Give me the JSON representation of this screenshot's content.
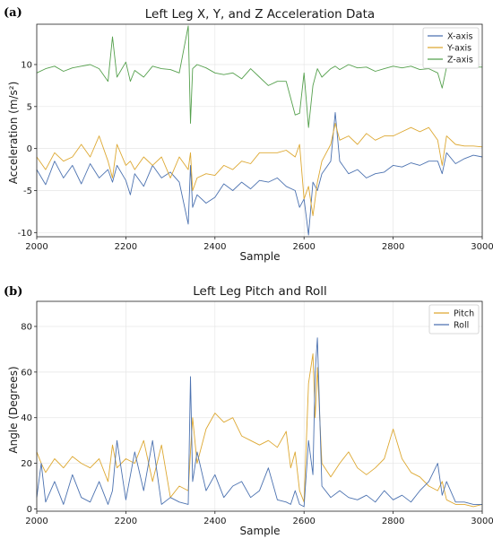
{
  "figure": {
    "panel_a_label": "(a)",
    "panel_b_label": "(b)"
  },
  "chart_data": [
    {
      "type": "line",
      "title": "Left Leg X, Y, and Z Acceleration Data",
      "xlabel": "Sample",
      "ylabel": "Acceleration (m/s²)",
      "xlim": [
        2000,
        3000
      ],
      "ylim": [
        -10.5,
        14.8
      ],
      "xticks": [
        2000,
        2200,
        2400,
        2600,
        2800,
        3000
      ],
      "yticks": [
        -10,
        -5,
        0,
        5,
        10
      ],
      "grid": true,
      "legend": "top-right",
      "x": [
        2000,
        2020,
        2040,
        2060,
        2080,
        2100,
        2120,
        2140,
        2160,
        2170,
        2180,
        2200,
        2210,
        2220,
        2240,
        2260,
        2280,
        2300,
        2320,
        2340,
        2345,
        2350,
        2360,
        2380,
        2400,
        2420,
        2440,
        2460,
        2480,
        2500,
        2520,
        2540,
        2560,
        2580,
        2590,
        2600,
        2610,
        2620,
        2630,
        2640,
        2660,
        2670,
        2680,
        2700,
        2720,
        2740,
        2760,
        2780,
        2800,
        2820,
        2840,
        2860,
        2880,
        2900,
        2910,
        2920,
        2940,
        2960,
        2980,
        3000
      ],
      "series": [
        {
          "name": "X-axis",
          "color": "#4c72b0",
          "values": [
            -2.5,
            -4.3,
            -1.5,
            -3.5,
            -2.0,
            -4.2,
            -1.8,
            -3.5,
            -2.5,
            -4.0,
            -2.0,
            -3.8,
            -5.5,
            -3.0,
            -4.5,
            -2.0,
            -3.5,
            -2.8,
            -4.0,
            -9.0,
            -2.0,
            -7.0,
            -5.5,
            -6.5,
            -5.8,
            -4.2,
            -5.0,
            -4.0,
            -4.8,
            -3.8,
            -4.0,
            -3.5,
            -4.5,
            -5.0,
            -7.0,
            -6.0,
            -10.3,
            -4.0,
            -5.0,
            -3.0,
            -1.5,
            4.3,
            -1.5,
            -3.0,
            -2.5,
            -3.5,
            -3.0,
            -2.8,
            -2.0,
            -2.2,
            -1.7,
            -2.0,
            -1.5,
            -1.5,
            -3.0,
            -0.5,
            -1.8,
            -1.2,
            -0.8,
            -1.0
          ]
        },
        {
          "name": "Y-axis",
          "color": "#dda832",
          "values": [
            -1.0,
            -2.5,
            -0.5,
            -1.5,
            -1.0,
            0.5,
            -1.0,
            1.5,
            -1.5,
            -3.5,
            0.5,
            -2.0,
            -1.5,
            -2.5,
            -1.0,
            -2.0,
            -1.0,
            -3.5,
            -1.0,
            -2.5,
            -0.5,
            -5.0,
            -3.5,
            -3.0,
            -3.2,
            -2.0,
            -2.5,
            -1.5,
            -1.8,
            -0.5,
            -0.5,
            -0.5,
            -0.2,
            -1.0,
            0.5,
            -6.0,
            -4.5,
            -8.0,
            -4.0,
            -1.5,
            0.5,
            3.0,
            1.0,
            1.5,
            0.5,
            1.8,
            1.0,
            1.5,
            1.5,
            2.0,
            2.5,
            2.0,
            2.5,
            1.0,
            -2.0,
            1.5,
            0.5,
            0.3,
            0.3,
            0.2
          ]
        },
        {
          "name": "Z-axis",
          "color": "#55a04d",
          "values": [
            9.0,
            9.5,
            9.8,
            9.2,
            9.6,
            9.8,
            10.0,
            9.5,
            8.0,
            13.3,
            8.5,
            10.3,
            8.0,
            9.3,
            8.5,
            9.8,
            9.5,
            9.4,
            9.0,
            14.6,
            3.0,
            9.5,
            10.0,
            9.6,
            9.0,
            8.8,
            9.0,
            8.3,
            9.5,
            8.5,
            7.5,
            8.0,
            8.0,
            4.0,
            4.2,
            9.0,
            2.5,
            7.5,
            9.5,
            8.5,
            9.5,
            9.8,
            9.4,
            10.0,
            9.6,
            9.7,
            9.2,
            9.5,
            9.8,
            9.6,
            9.8,
            9.4,
            9.5,
            9.0,
            7.2,
            9.7,
            9.7,
            9.7,
            9.7,
            9.7
          ]
        }
      ]
    },
    {
      "type": "line",
      "title": "Left Leg Pitch and Roll",
      "xlabel": "Sample",
      "ylabel": "Angle (Degrees)",
      "xlim": [
        2000,
        3000
      ],
      "ylim": [
        -1,
        91
      ],
      "xticks": [
        2000,
        2200,
        2400,
        2600,
        2800,
        3000
      ],
      "yticks": [
        0,
        20,
        40,
        60,
        80
      ],
      "grid": true,
      "legend": "top-right",
      "x": [
        2000,
        2010,
        2020,
        2040,
        2060,
        2080,
        2100,
        2120,
        2140,
        2160,
        2170,
        2180,
        2200,
        2220,
        2240,
        2260,
        2280,
        2300,
        2320,
        2340,
        2345,
        2350,
        2360,
        2380,
        2400,
        2420,
        2440,
        2460,
        2480,
        2500,
        2520,
        2540,
        2560,
        2570,
        2580,
        2590,
        2600,
        2610,
        2620,
        2625,
        2630,
        2640,
        2660,
        2680,
        2700,
        2720,
        2740,
        2760,
        2780,
        2800,
        2820,
        2840,
        2860,
        2880,
        2900,
        2910,
        2920,
        2940,
        2960,
        2980,
        3000
      ],
      "series": [
        {
          "name": "Pitch",
          "color": "#dda832",
          "values": [
            25,
            20,
            16,
            22,
            18,
            23,
            20,
            18,
            22,
            12,
            28,
            18,
            22,
            20,
            30,
            12,
            28,
            5,
            10,
            8,
            25,
            40,
            20,
            35,
            42,
            38,
            40,
            32,
            30,
            28,
            30,
            27,
            34,
            18,
            25,
            8,
            3,
            55,
            68,
            40,
            62,
            20,
            14,
            20,
            25,
            18,
            15,
            18,
            22,
            35,
            22,
            16,
            14,
            10,
            8,
            12,
            4,
            2,
            2,
            1,
            2
          ]
        },
        {
          "name": "Roll",
          "color": "#4c72b0",
          "values": [
            5,
            20,
            3,
            12,
            2,
            15,
            5,
            3,
            12,
            2,
            8,
            30,
            4,
            25,
            8,
            30,
            2,
            5,
            3,
            2,
            58,
            12,
            25,
            8,
            15,
            5,
            10,
            12,
            5,
            8,
            18,
            4,
            3,
            2,
            8,
            2,
            1,
            30,
            15,
            60,
            75,
            10,
            5,
            8,
            5,
            4,
            6,
            3,
            8,
            4,
            6,
            3,
            8,
            12,
            20,
            6,
            12,
            3,
            3,
            2,
            2
          ]
        }
      ]
    }
  ]
}
